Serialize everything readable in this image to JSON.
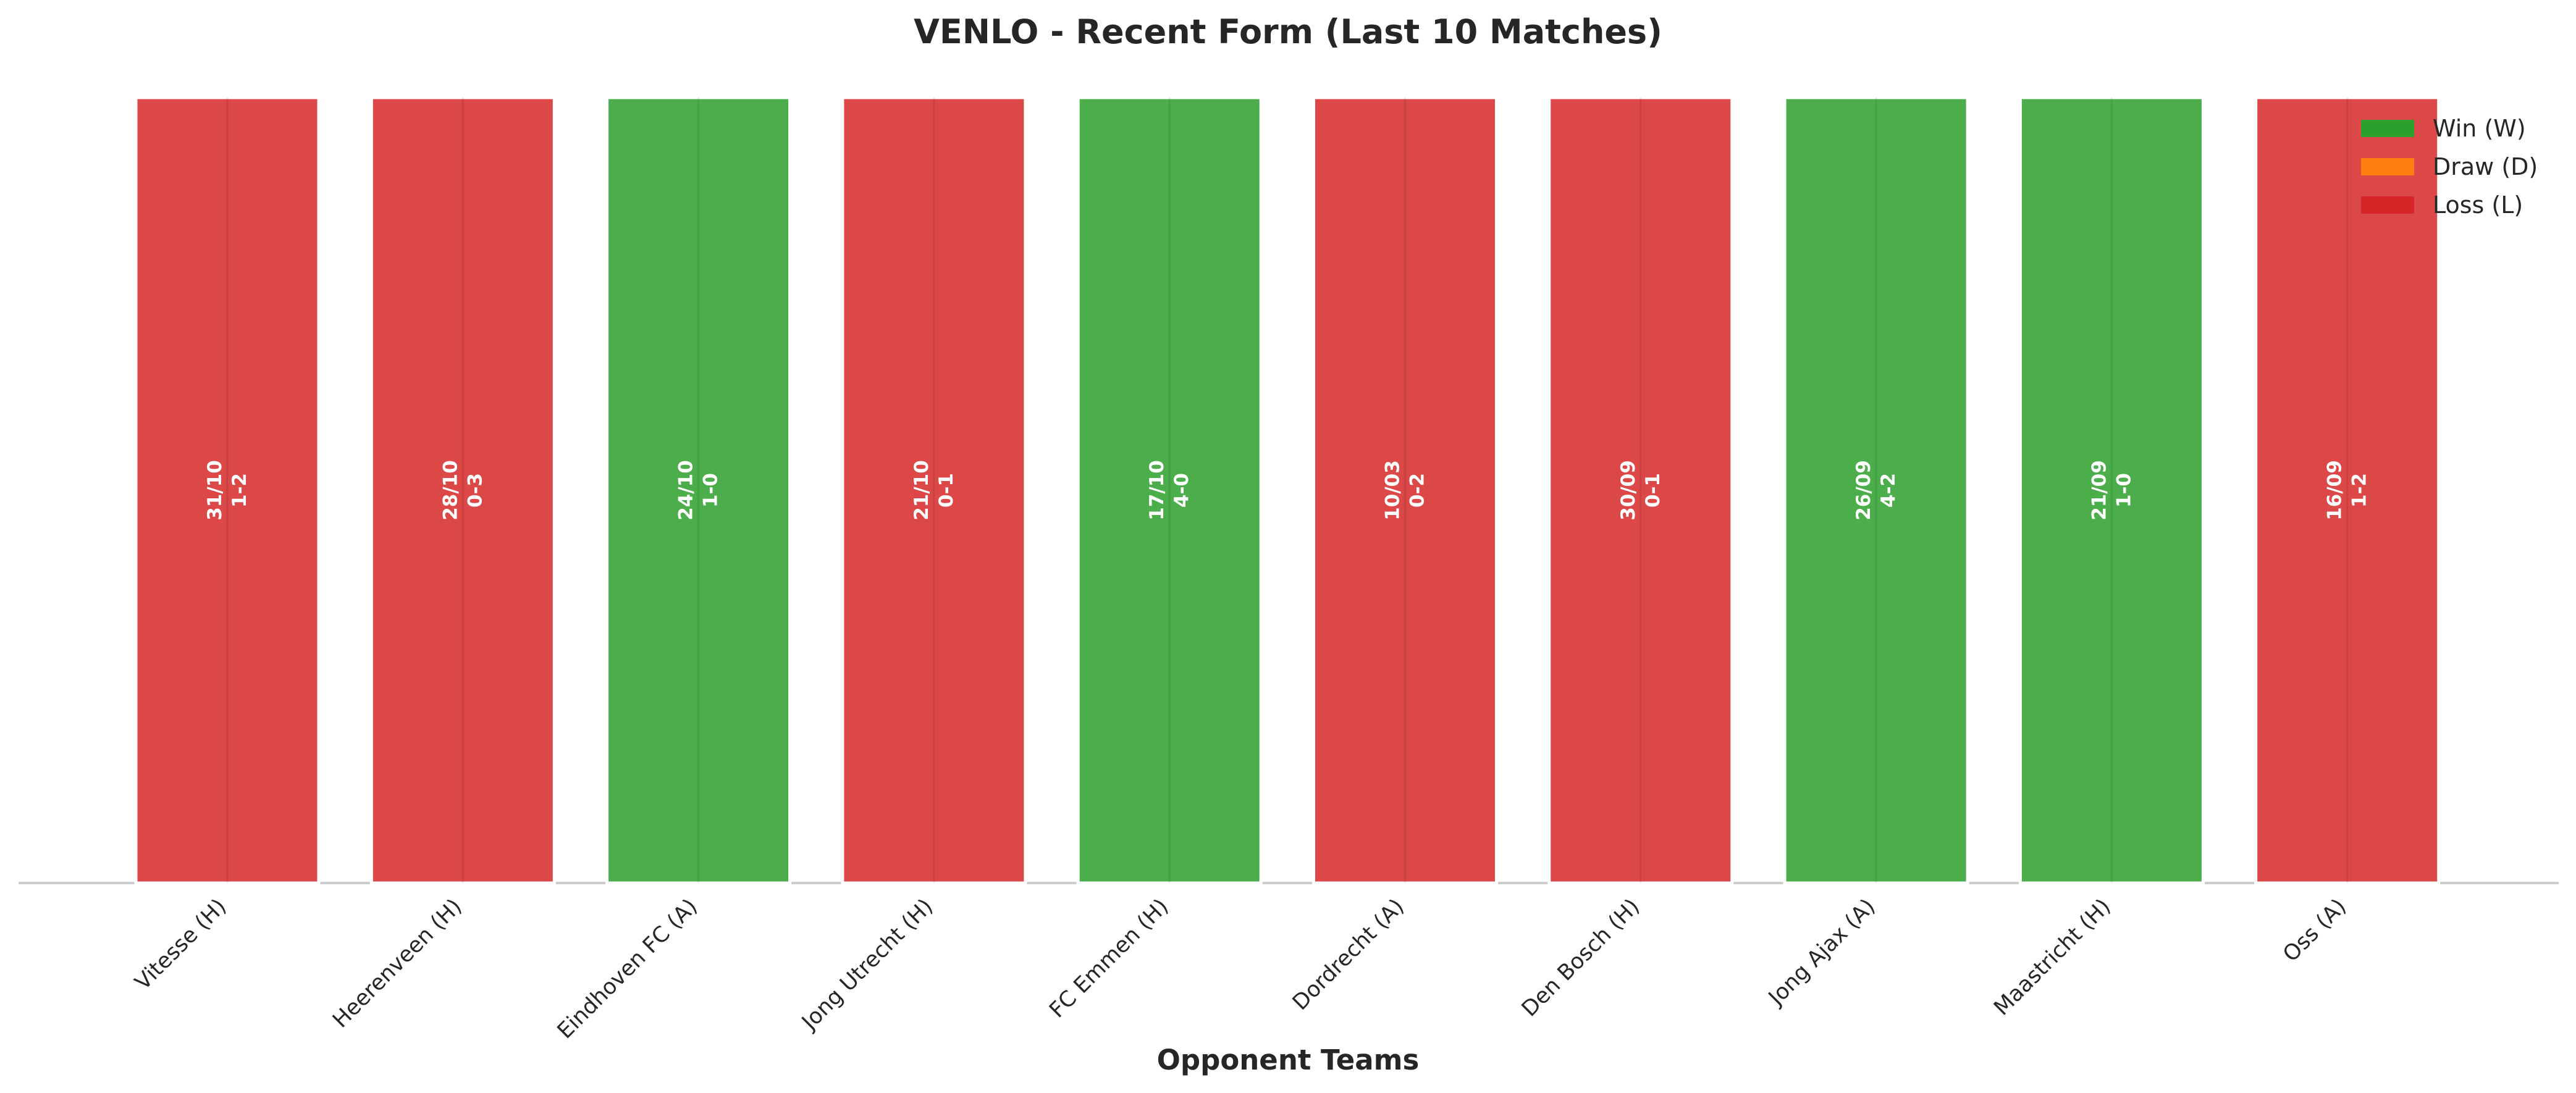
{
  "chart_data": {
    "type": "bar",
    "title": "VENLO - Recent Form (Last 10 Matches)",
    "x_label": "Opponent Teams",
    "categories": [
      "Vitesse (H)",
      "Heerenveen (H)",
      "Eindhoven FC (A)",
      "Jong Utrecht (H)",
      "FC Emmen (H)",
      "Dordrecht (A)",
      "Den Bosch (H)",
      "Jong Ajax (A)",
      "Maastricht (H)",
      "Oss (A)"
    ],
    "values": [
      1,
      1,
      1,
      1,
      1,
      1,
      1,
      1,
      1,
      1
    ],
    "ylim": [
      0,
      1
    ],
    "dates": [
      "31/10",
      "28/10",
      "24/10",
      "21/10",
      "17/10",
      "10/03",
      "30/09",
      "26/09",
      "21/09",
      "16/09"
    ],
    "scores": [
      "1-2",
      "0-3",
      "1-0",
      "0-1",
      "4-0",
      "0-2",
      "0-1",
      "4-2",
      "1-0",
      "1-2"
    ],
    "colors": [
      "#d62728",
      "#d62728",
      "#2ca02c",
      "#d62728",
      "#2ca02c",
      "#d62728",
      "#d62728",
      "#2ca02c",
      "#2ca02c",
      "#d62728"
    ],
    "legend": [
      {
        "name": "Win (W)",
        "color": "#2ca02c"
      },
      {
        "name": "Draw (D)",
        "color": "#ff7f0e"
      },
      {
        "name": "Loss (L)",
        "color": "#d62728"
      }
    ],
    "legend_position": "upper right"
  }
}
